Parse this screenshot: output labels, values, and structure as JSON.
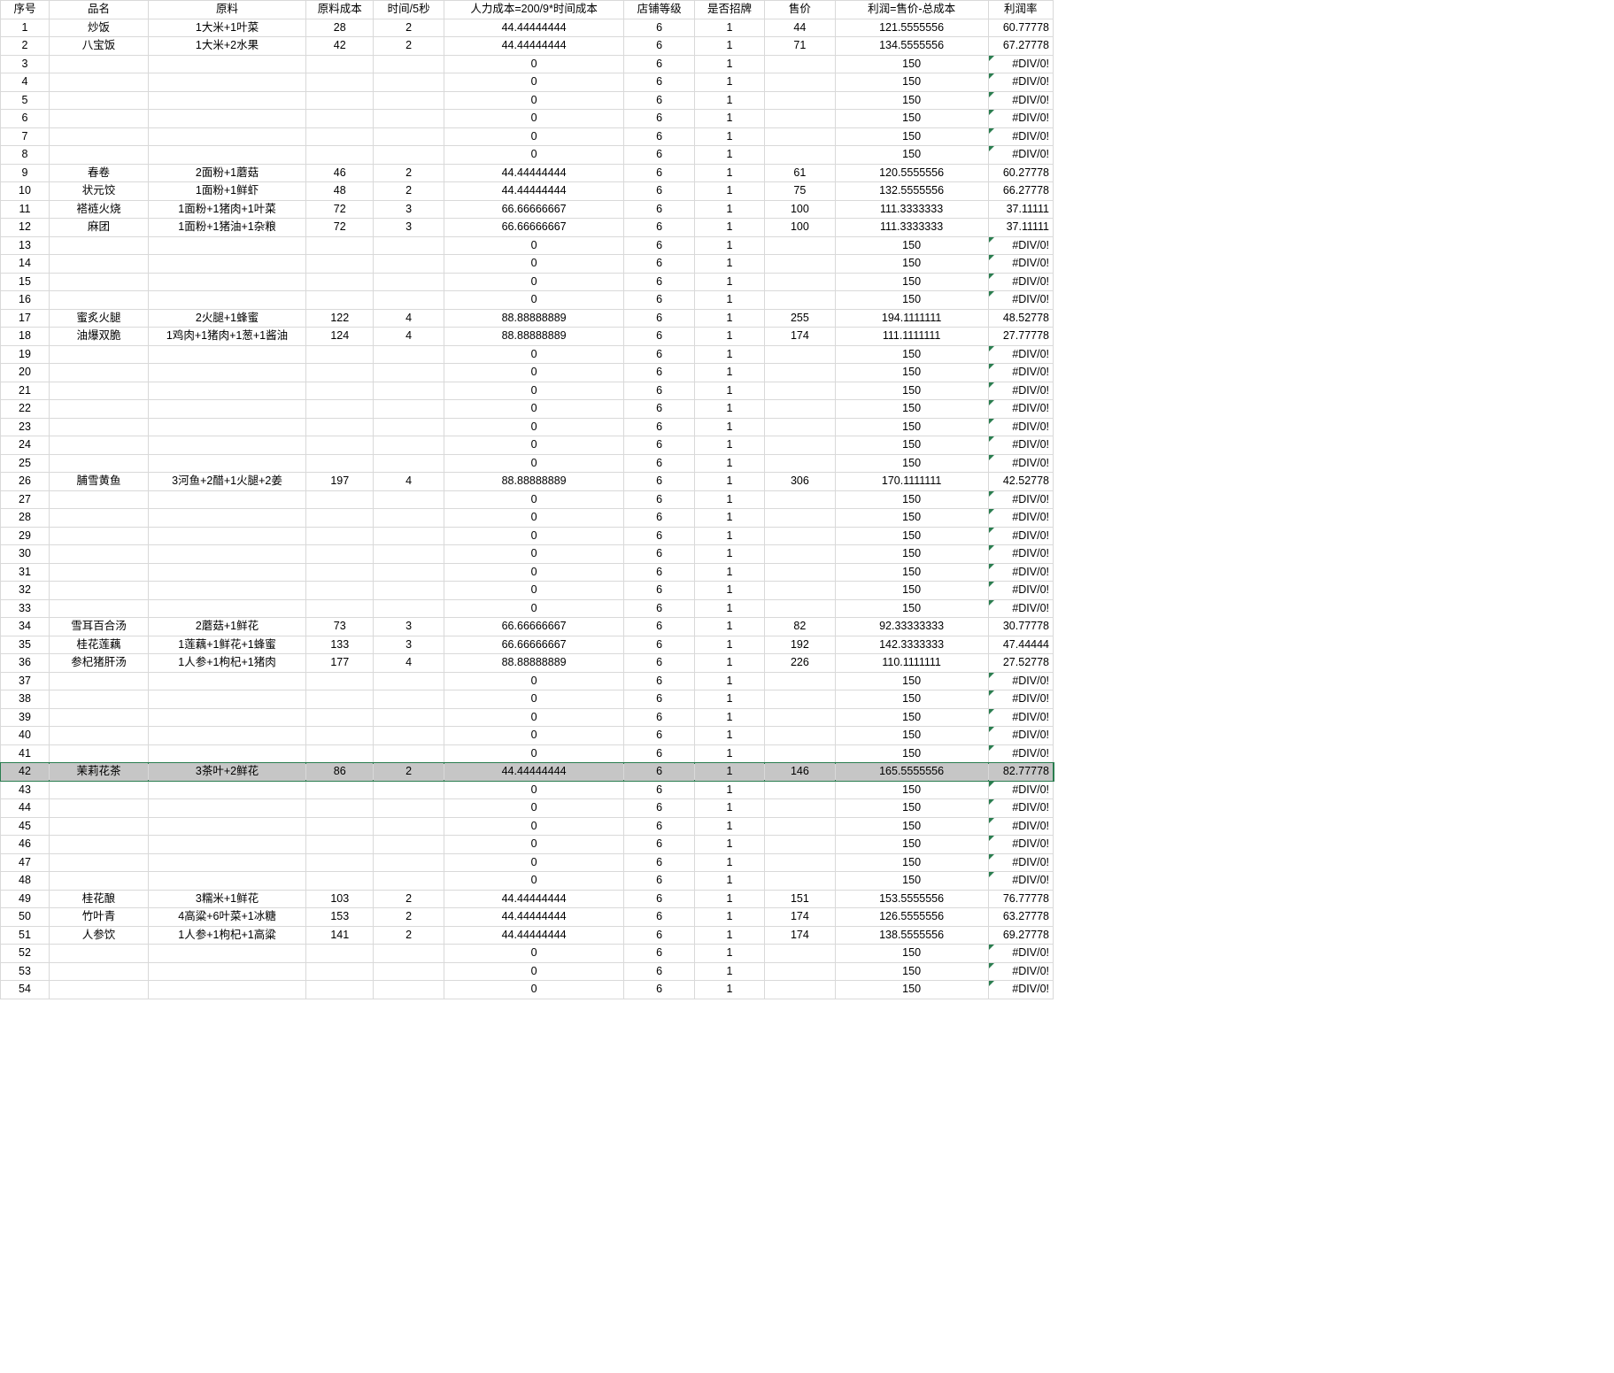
{
  "headers": [
    "序号",
    "品名",
    "原料",
    "原料成本",
    "时间/5秒",
    "人力成本=200/9*时间成本",
    "店铺等级",
    "是否招牌",
    "售价",
    "利润=售价-总成本",
    "利润率"
  ],
  "selectedRow": 42,
  "rows": [
    {
      "n": 1,
      "name": "炒饭",
      "ing": "1大米+1叶菜",
      "mat": "28",
      "t": "2",
      "lab": "44.44444444",
      "lvl": "6",
      "sig": "1",
      "price": "44",
      "profit": "121.5555556",
      "rate": "60.77778",
      "err": false
    },
    {
      "n": 2,
      "name": "八宝饭",
      "ing": "1大米+2水果",
      "mat": "42",
      "t": "2",
      "lab": "44.44444444",
      "lvl": "6",
      "sig": "1",
      "price": "71",
      "profit": "134.5555556",
      "rate": "67.27778",
      "err": false
    },
    {
      "n": 3,
      "name": "",
      "ing": "",
      "mat": "",
      "t": "",
      "lab": "0",
      "lvl": "6",
      "sig": "1",
      "price": "",
      "profit": "150",
      "rate": "#DIV/0!",
      "err": true
    },
    {
      "n": 4,
      "name": "",
      "ing": "",
      "mat": "",
      "t": "",
      "lab": "0",
      "lvl": "6",
      "sig": "1",
      "price": "",
      "profit": "150",
      "rate": "#DIV/0!",
      "err": true
    },
    {
      "n": 5,
      "name": "",
      "ing": "",
      "mat": "",
      "t": "",
      "lab": "0",
      "lvl": "6",
      "sig": "1",
      "price": "",
      "profit": "150",
      "rate": "#DIV/0!",
      "err": true
    },
    {
      "n": 6,
      "name": "",
      "ing": "",
      "mat": "",
      "t": "",
      "lab": "0",
      "lvl": "6",
      "sig": "1",
      "price": "",
      "profit": "150",
      "rate": "#DIV/0!",
      "err": true
    },
    {
      "n": 7,
      "name": "",
      "ing": "",
      "mat": "",
      "t": "",
      "lab": "0",
      "lvl": "6",
      "sig": "1",
      "price": "",
      "profit": "150",
      "rate": "#DIV/0!",
      "err": true
    },
    {
      "n": 8,
      "name": "",
      "ing": "",
      "mat": "",
      "t": "",
      "lab": "0",
      "lvl": "6",
      "sig": "1",
      "price": "",
      "profit": "150",
      "rate": "#DIV/0!",
      "err": true
    },
    {
      "n": 9,
      "name": "春卷",
      "ing": "2面粉+1蘑菇",
      "mat": "46",
      "t": "2",
      "lab": "44.44444444",
      "lvl": "6",
      "sig": "1",
      "price": "61",
      "profit": "120.5555556",
      "rate": "60.27778",
      "err": false
    },
    {
      "n": 10,
      "name": "状元饺",
      "ing": "1面粉+1鲜虾",
      "mat": "48",
      "t": "2",
      "lab": "44.44444444",
      "lvl": "6",
      "sig": "1",
      "price": "75",
      "profit": "132.5555556",
      "rate": "66.27778",
      "err": false
    },
    {
      "n": 11,
      "name": "褡裢火烧",
      "ing": "1面粉+1猪肉+1叶菜",
      "mat": "72",
      "t": "3",
      "lab": "66.66666667",
      "lvl": "6",
      "sig": "1",
      "price": "100",
      "profit": "111.3333333",
      "rate": "37.11111",
      "err": false
    },
    {
      "n": 12,
      "name": "麻团",
      "ing": "1面粉+1猪油+1杂粮",
      "mat": "72",
      "t": "3",
      "lab": "66.66666667",
      "lvl": "6",
      "sig": "1",
      "price": "100",
      "profit": "111.3333333",
      "rate": "37.11111",
      "err": false
    },
    {
      "n": 13,
      "name": "",
      "ing": "",
      "mat": "",
      "t": "",
      "lab": "0",
      "lvl": "6",
      "sig": "1",
      "price": "",
      "profit": "150",
      "rate": "#DIV/0!",
      "err": true
    },
    {
      "n": 14,
      "name": "",
      "ing": "",
      "mat": "",
      "t": "",
      "lab": "0",
      "lvl": "6",
      "sig": "1",
      "price": "",
      "profit": "150",
      "rate": "#DIV/0!",
      "err": true
    },
    {
      "n": 15,
      "name": "",
      "ing": "",
      "mat": "",
      "t": "",
      "lab": "0",
      "lvl": "6",
      "sig": "1",
      "price": "",
      "profit": "150",
      "rate": "#DIV/0!",
      "err": true
    },
    {
      "n": 16,
      "name": "",
      "ing": "",
      "mat": "",
      "t": "",
      "lab": "0",
      "lvl": "6",
      "sig": "1",
      "price": "",
      "profit": "150",
      "rate": "#DIV/0!",
      "err": true
    },
    {
      "n": 17,
      "name": "蜜炙火腿",
      "ing": "2火腿+1蜂蜜",
      "mat": "122",
      "t": "4",
      "lab": "88.88888889",
      "lvl": "6",
      "sig": "1",
      "price": "255",
      "profit": "194.1111111",
      "rate": "48.52778",
      "err": false
    },
    {
      "n": 18,
      "name": "油爆双脆",
      "ing": "1鸡肉+1猪肉+1葱+1酱油",
      "mat": "124",
      "t": "4",
      "lab": "88.88888889",
      "lvl": "6",
      "sig": "1",
      "price": "174",
      "profit": "111.1111111",
      "rate": "27.77778",
      "err": false
    },
    {
      "n": 19,
      "name": "",
      "ing": "",
      "mat": "",
      "t": "",
      "lab": "0",
      "lvl": "6",
      "sig": "1",
      "price": "",
      "profit": "150",
      "rate": "#DIV/0!",
      "err": true
    },
    {
      "n": 20,
      "name": "",
      "ing": "",
      "mat": "",
      "t": "",
      "lab": "0",
      "lvl": "6",
      "sig": "1",
      "price": "",
      "profit": "150",
      "rate": "#DIV/0!",
      "err": true
    },
    {
      "n": 21,
      "name": "",
      "ing": "",
      "mat": "",
      "t": "",
      "lab": "0",
      "lvl": "6",
      "sig": "1",
      "price": "",
      "profit": "150",
      "rate": "#DIV/0!",
      "err": true
    },
    {
      "n": 22,
      "name": "",
      "ing": "",
      "mat": "",
      "t": "",
      "lab": "0",
      "lvl": "6",
      "sig": "1",
      "price": "",
      "profit": "150",
      "rate": "#DIV/0!",
      "err": true
    },
    {
      "n": 23,
      "name": "",
      "ing": "",
      "mat": "",
      "t": "",
      "lab": "0",
      "lvl": "6",
      "sig": "1",
      "price": "",
      "profit": "150",
      "rate": "#DIV/0!",
      "err": true
    },
    {
      "n": 24,
      "name": "",
      "ing": "",
      "mat": "",
      "t": "",
      "lab": "0",
      "lvl": "6",
      "sig": "1",
      "price": "",
      "profit": "150",
      "rate": "#DIV/0!",
      "err": true
    },
    {
      "n": 25,
      "name": "",
      "ing": "",
      "mat": "",
      "t": "",
      "lab": "0",
      "lvl": "6",
      "sig": "1",
      "price": "",
      "profit": "150",
      "rate": "#DIV/0!",
      "err": true
    },
    {
      "n": 26,
      "name": "脯雪黄鱼",
      "ing": "3河鱼+2醋+1火腿+2姜",
      "mat": "197",
      "t": "4",
      "lab": "88.88888889",
      "lvl": "6",
      "sig": "1",
      "price": "306",
      "profit": "170.1111111",
      "rate": "42.52778",
      "err": false
    },
    {
      "n": 27,
      "name": "",
      "ing": "",
      "mat": "",
      "t": "",
      "lab": "0",
      "lvl": "6",
      "sig": "1",
      "price": "",
      "profit": "150",
      "rate": "#DIV/0!",
      "err": true
    },
    {
      "n": 28,
      "name": "",
      "ing": "",
      "mat": "",
      "t": "",
      "lab": "0",
      "lvl": "6",
      "sig": "1",
      "price": "",
      "profit": "150",
      "rate": "#DIV/0!",
      "err": true
    },
    {
      "n": 29,
      "name": "",
      "ing": "",
      "mat": "",
      "t": "",
      "lab": "0",
      "lvl": "6",
      "sig": "1",
      "price": "",
      "profit": "150",
      "rate": "#DIV/0!",
      "err": true
    },
    {
      "n": 30,
      "name": "",
      "ing": "",
      "mat": "",
      "t": "",
      "lab": "0",
      "lvl": "6",
      "sig": "1",
      "price": "",
      "profit": "150",
      "rate": "#DIV/0!",
      "err": true
    },
    {
      "n": 31,
      "name": "",
      "ing": "",
      "mat": "",
      "t": "",
      "lab": "0",
      "lvl": "6",
      "sig": "1",
      "price": "",
      "profit": "150",
      "rate": "#DIV/0!",
      "err": true
    },
    {
      "n": 32,
      "name": "",
      "ing": "",
      "mat": "",
      "t": "",
      "lab": "0",
      "lvl": "6",
      "sig": "1",
      "price": "",
      "profit": "150",
      "rate": "#DIV/0!",
      "err": true
    },
    {
      "n": 33,
      "name": "",
      "ing": "",
      "mat": "",
      "t": "",
      "lab": "0",
      "lvl": "6",
      "sig": "1",
      "price": "",
      "profit": "150",
      "rate": "#DIV/0!",
      "err": true
    },
    {
      "n": 34,
      "name": "雪耳百合汤",
      "ing": "2蘑菇+1鲜花",
      "mat": "73",
      "t": "3",
      "lab": "66.66666667",
      "lvl": "6",
      "sig": "1",
      "price": "82",
      "profit": "92.33333333",
      "rate": "30.77778",
      "err": false
    },
    {
      "n": 35,
      "name": "桂花莲藕",
      "ing": "1莲藕+1鲜花+1蜂蜜",
      "mat": "133",
      "t": "3",
      "lab": "66.66666667",
      "lvl": "6",
      "sig": "1",
      "price": "192",
      "profit": "142.3333333",
      "rate": "47.44444",
      "err": false
    },
    {
      "n": 36,
      "name": "参杞猪肝汤",
      "ing": "1人参+1枸杞+1猪肉",
      "mat": "177",
      "t": "4",
      "lab": "88.88888889",
      "lvl": "6",
      "sig": "1",
      "price": "226",
      "profit": "110.1111111",
      "rate": "27.52778",
      "err": false
    },
    {
      "n": 37,
      "name": "",
      "ing": "",
      "mat": "",
      "t": "",
      "lab": "0",
      "lvl": "6",
      "sig": "1",
      "price": "",
      "profit": "150",
      "rate": "#DIV/0!",
      "err": true
    },
    {
      "n": 38,
      "name": "",
      "ing": "",
      "mat": "",
      "t": "",
      "lab": "0",
      "lvl": "6",
      "sig": "1",
      "price": "",
      "profit": "150",
      "rate": "#DIV/0!",
      "err": true
    },
    {
      "n": 39,
      "name": "",
      "ing": "",
      "mat": "",
      "t": "",
      "lab": "0",
      "lvl": "6",
      "sig": "1",
      "price": "",
      "profit": "150",
      "rate": "#DIV/0!",
      "err": true
    },
    {
      "n": 40,
      "name": "",
      "ing": "",
      "mat": "",
      "t": "",
      "lab": "0",
      "lvl": "6",
      "sig": "1",
      "price": "",
      "profit": "150",
      "rate": "#DIV/0!",
      "err": true
    },
    {
      "n": 41,
      "name": "",
      "ing": "",
      "mat": "",
      "t": "",
      "lab": "0",
      "lvl": "6",
      "sig": "1",
      "price": "",
      "profit": "150",
      "rate": "#DIV/0!",
      "err": true
    },
    {
      "n": 42,
      "name": "茉莉花茶",
      "ing": "3茶叶+2鲜花",
      "mat": "86",
      "t": "2",
      "lab": "44.44444444",
      "lvl": "6",
      "sig": "1",
      "price": "146",
      "profit": "165.5555556",
      "rate": "82.77778",
      "err": false
    },
    {
      "n": 43,
      "name": "",
      "ing": "",
      "mat": "",
      "t": "",
      "lab": "0",
      "lvl": "6",
      "sig": "1",
      "price": "",
      "profit": "150",
      "rate": "#DIV/0!",
      "err": true
    },
    {
      "n": 44,
      "name": "",
      "ing": "",
      "mat": "",
      "t": "",
      "lab": "0",
      "lvl": "6",
      "sig": "1",
      "price": "",
      "profit": "150",
      "rate": "#DIV/0!",
      "err": true
    },
    {
      "n": 45,
      "name": "",
      "ing": "",
      "mat": "",
      "t": "",
      "lab": "0",
      "lvl": "6",
      "sig": "1",
      "price": "",
      "profit": "150",
      "rate": "#DIV/0!",
      "err": true
    },
    {
      "n": 46,
      "name": "",
      "ing": "",
      "mat": "",
      "t": "",
      "lab": "0",
      "lvl": "6",
      "sig": "1",
      "price": "",
      "profit": "150",
      "rate": "#DIV/0!",
      "err": true
    },
    {
      "n": 47,
      "name": "",
      "ing": "",
      "mat": "",
      "t": "",
      "lab": "0",
      "lvl": "6",
      "sig": "1",
      "price": "",
      "profit": "150",
      "rate": "#DIV/0!",
      "err": true
    },
    {
      "n": 48,
      "name": "",
      "ing": "",
      "mat": "",
      "t": "",
      "lab": "0",
      "lvl": "6",
      "sig": "1",
      "price": "",
      "profit": "150",
      "rate": "#DIV/0!",
      "err": true
    },
    {
      "n": 49,
      "name": "桂花酿",
      "ing": "3糯米+1鲜花",
      "mat": "103",
      "t": "2",
      "lab": "44.44444444",
      "lvl": "6",
      "sig": "1",
      "price": "151",
      "profit": "153.5555556",
      "rate": "76.77778",
      "err": false
    },
    {
      "n": 50,
      "name": "竹叶青",
      "ing": "4高粱+6叶菜+1冰糖",
      "mat": "153",
      "t": "2",
      "lab": "44.44444444",
      "lvl": "6",
      "sig": "1",
      "price": "174",
      "profit": "126.5555556",
      "rate": "63.27778",
      "err": false
    },
    {
      "n": 51,
      "name": "人参饮",
      "ing": "1人参+1枸杞+1高粱",
      "mat": "141",
      "t": "2",
      "lab": "44.44444444",
      "lvl": "6",
      "sig": "1",
      "price": "174",
      "profit": "138.5555556",
      "rate": "69.27778",
      "err": false
    },
    {
      "n": 52,
      "name": "",
      "ing": "",
      "mat": "",
      "t": "",
      "lab": "0",
      "lvl": "6",
      "sig": "1",
      "price": "",
      "profit": "150",
      "rate": "#DIV/0!",
      "err": true
    },
    {
      "n": 53,
      "name": "",
      "ing": "",
      "mat": "",
      "t": "",
      "lab": "0",
      "lvl": "6",
      "sig": "1",
      "price": "",
      "profit": "150",
      "rate": "#DIV/0!",
      "err": true
    },
    {
      "n": 54,
      "name": "",
      "ing": "",
      "mat": "",
      "t": "",
      "lab": "0",
      "lvl": "6",
      "sig": "1",
      "price": "",
      "profit": "150",
      "rate": "#DIV/0!",
      "err": true
    }
  ]
}
